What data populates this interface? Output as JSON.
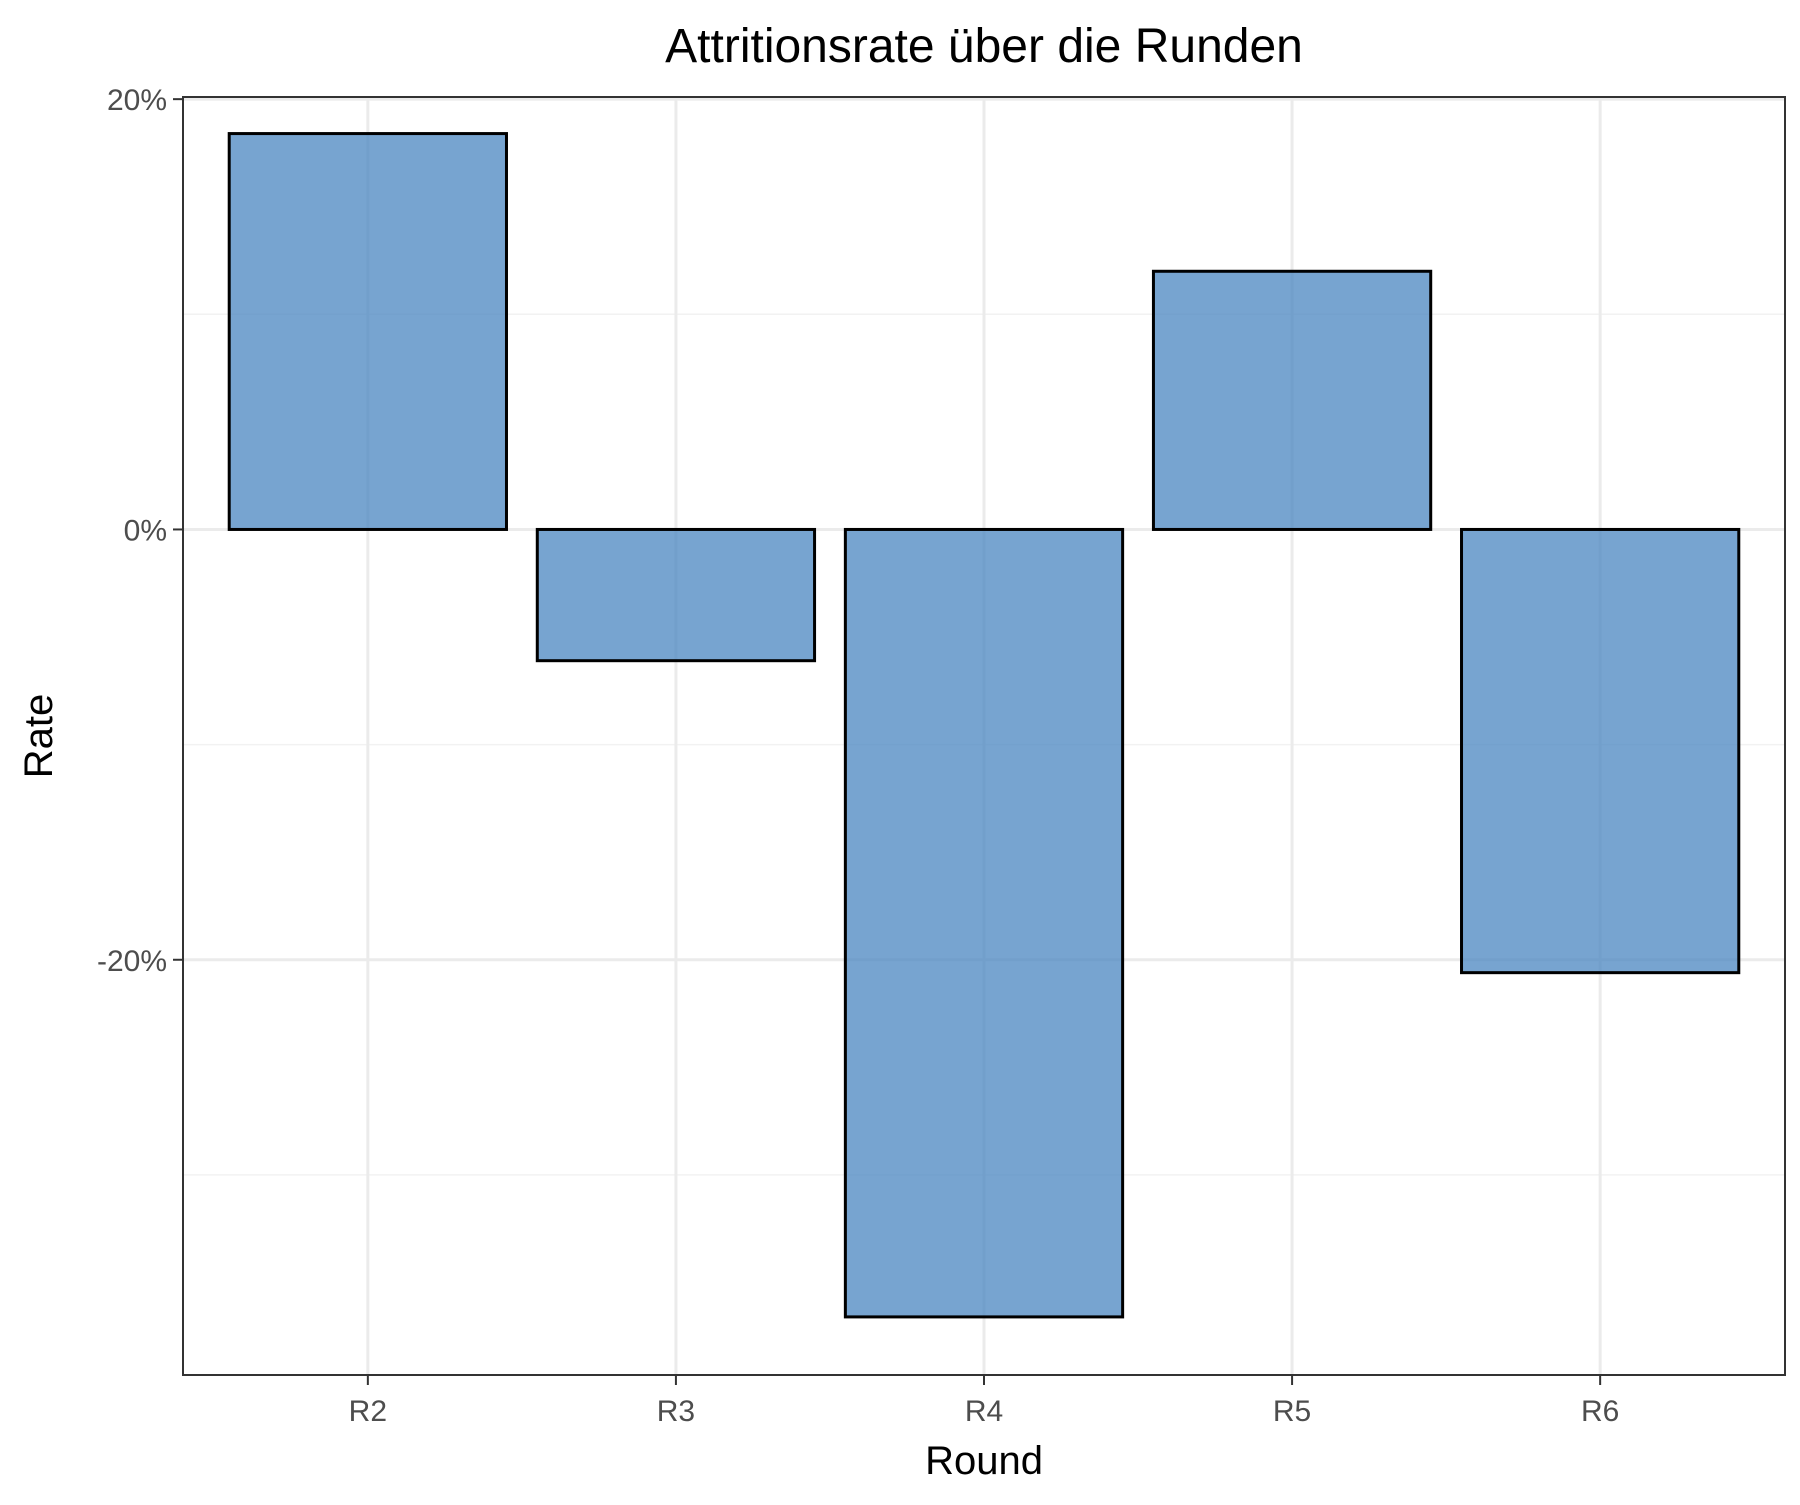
{
  "chart_data": {
    "type": "bar",
    "title": "Attritionsrate über die Runden",
    "xlabel": "Round",
    "ylabel": "Rate",
    "categories": [
      "R2",
      "R3",
      "R4",
      "R5",
      "R6"
    ],
    "values": [
      18.4,
      -6.1,
      -36.6,
      12.0,
      -20.6
    ],
    "value_unit": "%",
    "ylim": [
      -39.3,
      20.1
    ],
    "y_ticks": [
      -20,
      0,
      20
    ],
    "y_tick_labels": [
      "-20%",
      "0%",
      "20%"
    ],
    "grid": true,
    "legend": "none",
    "colors": {
      "bar_fill": "#4a86c0",
      "bar_outline": "#000000",
      "grid_major": "#ebebeb",
      "grid_minor": "#f2f2f2",
      "panel_border": "#333333"
    }
  }
}
